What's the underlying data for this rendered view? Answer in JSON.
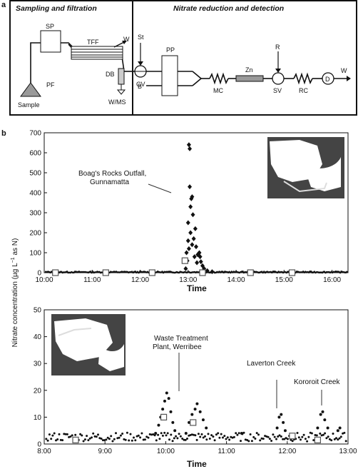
{
  "panel_a": {
    "panel_label": "a",
    "left_title": "Sampling and filtration",
    "right_title": "Nitrate reduction and detection",
    "components": {
      "sp": "SP",
      "tff": "TFF",
      "w1": "W",
      "pf": "PF",
      "sample": "Sample",
      "db": "DB",
      "wms": "W/MS",
      "st": "St",
      "cv": "CV",
      "b": "B",
      "pp": "PP",
      "mc": "MC",
      "zn": "Zn",
      "r": "R",
      "sv": "SV",
      "rc": "RC",
      "d": "D",
      "w2": "W"
    }
  },
  "panel_b": {
    "panel_label": "b",
    "ylabel_pre": "Nitrate concentration (µg L",
    "ylabel_sup": "−1",
    "ylabel_post": " as N)",
    "top": {
      "xlabel": "Time",
      "annotation_line1": "Boag's Rocks Outfall,",
      "annotation_line2": "Gunnamatta"
    },
    "bottom": {
      "xlabel": "Time",
      "annotation_wtp_line1": "Waste Treatment",
      "annotation_wtp_line2": "Plant, Werribee",
      "annotation_laverton": "Laverton Creek",
      "annotation_kororoit": "Kororoit Creek"
    }
  },
  "chart_data": [
    {
      "type": "scatter",
      "xlabel": "Time",
      "ylabel": "Nitrate concentration (µg L−1 as N)",
      "xlim": [
        "10:00",
        "16:20"
      ],
      "ylim": [
        0,
        700
      ],
      "x_ticks": [
        "10:00",
        "11:00",
        "12:00",
        "13:00",
        "14:00",
        "15:00",
        "16:00"
      ],
      "y_ticks": [
        0,
        100,
        200,
        300,
        400,
        500,
        600,
        700
      ],
      "annotations": [
        "Boag's Rocks Outfall, Gunnamatta"
      ],
      "series": [
        {
          "marker": "diamond",
          "points": [
            [
              "12:57",
              20
            ],
            [
              "12:58",
              100
            ],
            [
              "12:59",
              60
            ],
            [
              "13:00",
              160
            ],
            [
              "13:00",
              250
            ],
            [
              "13:01",
              120
            ],
            [
              "13:01",
              640
            ],
            [
              "13:02",
              620
            ],
            [
              "13:02",
              430
            ],
            [
              "13:03",
              330
            ],
            [
              "13:03",
              200
            ],
            [
              "13:04",
              370
            ],
            [
              "13:05",
              380
            ],
            [
              "13:05",
              140
            ],
            [
              "13:06",
              290
            ],
            [
              "13:07",
              170
            ],
            [
              "13:08",
              80
            ],
            [
              "13:09",
              220
            ],
            [
              "13:10",
              130
            ],
            [
              "13:11",
              50
            ],
            [
              "13:12",
              90
            ],
            [
              "13:13",
              95
            ],
            [
              "13:14",
              100
            ],
            [
              "13:15",
              80
            ],
            [
              "13:16",
              55
            ],
            [
              "13:18",
              35
            ],
            [
              "13:20",
              20
            ],
            [
              "13:24",
              10
            ],
            [
              "13:30",
              5
            ]
          ]
        },
        {
          "marker": "square-open",
          "points": [
            [
              "10:14",
              0
            ],
            [
              "11:17",
              0
            ],
            [
              "12:15",
              0
            ],
            [
              "12:56",
              60
            ],
            [
              "13:18",
              0
            ],
            [
              "14:18",
              0
            ],
            [
              "15:10",
              0
            ]
          ]
        }
      ]
    },
    {
      "type": "scatter",
      "xlabel": "Time",
      "ylabel": "Nitrate concentration (µg L−1 as N)",
      "xlim": [
        "8:00",
        "13:00"
      ],
      "ylim": [
        0,
        50
      ],
      "x_ticks": [
        "8:00",
        "9:00",
        "10:00",
        "11:00",
        "12:00",
        "13:00"
      ],
      "y_ticks": [
        0,
        10,
        20,
        30,
        40,
        50
      ],
      "annotations": [
        "Waste Treatment Plant, Werribee",
        "Laverton Creek",
        "Kororoit Creek"
      ],
      "series": [
        {
          "marker": "dot",
          "points": [
            [
              "9:50",
              4
            ],
            [
              "9:53",
              7
            ],
            [
              "9:55",
              10
            ],
            [
              "9:57",
              13
            ],
            [
              "9:59",
              16
            ],
            [
              "10:01",
              19
            ],
            [
              "10:03",
              17
            ],
            [
              "10:05",
              12
            ],
            [
              "10:07",
              8
            ],
            [
              "10:09",
              5
            ],
            [
              "10:20",
              4
            ],
            [
              "10:23",
              8
            ],
            [
              "10:26",
              11
            ],
            [
              "10:29",
              13
            ],
            [
              "10:31",
              15
            ],
            [
              "10:34",
              12
            ],
            [
              "10:37",
              9
            ],
            [
              "10:40",
              6
            ],
            [
              "11:15",
              4
            ],
            [
              "11:50",
              6
            ],
            [
              "11:52",
              10
            ],
            [
              "11:54",
              11
            ],
            [
              "11:56",
              8
            ],
            [
              "11:58",
              5
            ],
            [
              "12:30",
              6
            ],
            [
              "12:33",
              11
            ],
            [
              "12:35",
              12
            ],
            [
              "12:37",
              9
            ],
            [
              "12:40",
              6
            ],
            [
              "12:50",
              5
            ],
            [
              "12:52",
              6
            ]
          ]
        },
        {
          "marker": "square-open",
          "points": [
            [
              "8:31",
              1.5
            ],
            [
              "9:58",
              10
            ],
            [
              "10:27",
              8
            ],
            [
              "12:05",
              3
            ],
            [
              "12:30",
              1.5
            ]
          ]
        }
      ]
    }
  ]
}
